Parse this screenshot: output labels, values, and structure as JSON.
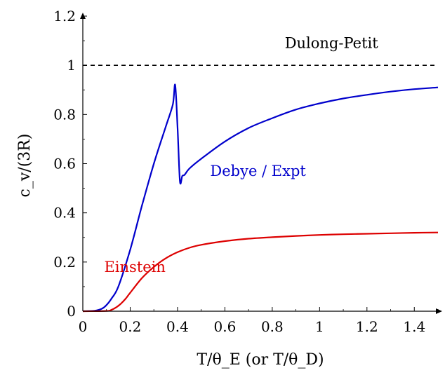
{
  "chart_data": {
    "type": "line",
    "xlabel": "T/θ_E (or T/θ_D)",
    "ylabel": "c_v/(3R)",
    "xlim": [
      0,
      1.5
    ],
    "ylim": [
      0,
      1.2
    ],
    "x_ticks": [
      0,
      0.2,
      0.4,
      0.6,
      0.8,
      1,
      1.2,
      1.4
    ],
    "x_tick_labels": [
      "0",
      "0.2",
      "0.4",
      "0.6",
      "0.8",
      "1",
      "1.2",
      "1.4"
    ],
    "y_ticks": [
      0,
      0.2,
      0.4,
      0.6,
      0.8,
      1,
      1.2
    ],
    "y_tick_labels": [
      "0",
      "0.2",
      "0.4",
      "0.6",
      "0.8",
      "1",
      "1.2"
    ],
    "series": [
      {
        "name": "Dulong-Petit",
        "color": "#000000",
        "style": "dashed",
        "x": [
          0,
          1.5
        ],
        "y": [
          1,
          1
        ]
      },
      {
        "name": "Debye / Expt",
        "color": "#0000cc",
        "style": "solid",
        "x": [
          0,
          0.05,
          0.08,
          0.1,
          0.12,
          0.15,
          0.2,
          0.25,
          0.3,
          0.35,
          0.38,
          0.39,
          0.4,
          0.41,
          0.42,
          0.43,
          0.45,
          0.5,
          0.6,
          0.7,
          0.8,
          0.9,
          1.0,
          1.1,
          1.2,
          1.3,
          1.4,
          1.5
        ],
        "y": [
          0,
          0.002,
          0.01,
          0.025,
          0.05,
          0.1,
          0.25,
          0.43,
          0.6,
          0.75,
          0.84,
          0.92,
          0.75,
          0.53,
          0.55,
          0.555,
          0.58,
          0.62,
          0.69,
          0.745,
          0.785,
          0.82,
          0.845,
          0.865,
          0.88,
          0.893,
          0.903,
          0.91
        ]
      },
      {
        "name": "Einstein",
        "color": "#dd0000",
        "style": "solid",
        "x": [
          0,
          0.1,
          0.12,
          0.14,
          0.16,
          0.18,
          0.2,
          0.25,
          0.3,
          0.35,
          0.4,
          0.45,
          0.5,
          0.6,
          0.7,
          0.8,
          0.9,
          1.0,
          1.1,
          1.2,
          1.3,
          1.4,
          1.5
        ],
        "y": [
          0,
          0.001,
          0.005,
          0.015,
          0.03,
          0.05,
          0.075,
          0.135,
          0.18,
          0.215,
          0.24,
          0.258,
          0.27,
          0.285,
          0.295,
          0.301,
          0.306,
          0.31,
          0.313,
          0.315,
          0.317,
          0.319,
          0.32
        ]
      }
    ],
    "annotations": [
      {
        "text": "Dulong-Petit",
        "x": 1.05,
        "y": 1.07
      },
      {
        "text": "Debye / Expt",
        "x": 0.74,
        "y": 0.55
      },
      {
        "text": "Einstein",
        "x": 0.22,
        "y": 0.16
      }
    ]
  }
}
